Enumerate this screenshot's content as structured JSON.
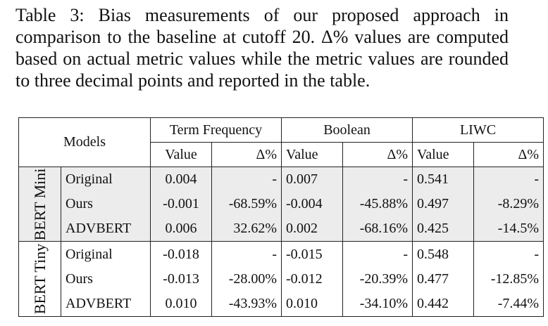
{
  "caption": "Table 3: Bias measurements of our proposed approach in comparison to the baseline at cutoff 20. Δ% values are computed based on actual metric values while the metric values are rounded to three decimal points and reported in the table.",
  "table": {
    "models_header": "Models",
    "metrics": [
      "Term Frequency",
      "Boolean",
      "LIWC"
    ],
    "sub_headers": {
      "value": "Value",
      "delta": "Δ%"
    },
    "groups": [
      {
        "label": "BERT Mini",
        "rows": [
          {
            "model": "Original",
            "tf_value": "0.004",
            "tf_delta": "-",
            "bool_value": "0.007",
            "bool_delta": "-",
            "liwc_value": "0.541",
            "liwc_delta": "-"
          },
          {
            "model": "Ours",
            "tf_value": "-0.001",
            "tf_delta": "-68.59%",
            "bool_value": "-0.004",
            "bool_delta": "-45.88%",
            "liwc_value": "0.497",
            "liwc_delta": "-8.29%"
          },
          {
            "model": "ADVBERT",
            "tf_value": "0.006",
            "tf_delta": "32.62%",
            "bool_value": "0.002",
            "bool_delta": "-68.16%",
            "liwc_value": "0.425",
            "liwc_delta": "-14.5%"
          }
        ]
      },
      {
        "label": "BERT Tiny",
        "rows": [
          {
            "model": "Original",
            "tf_value": "-0.018",
            "tf_delta": "-",
            "bool_value": "-0.015",
            "bool_delta": "-",
            "liwc_value": "0.548",
            "liwc_delta": "-"
          },
          {
            "model": "Ours",
            "tf_value": "-0.013",
            "tf_delta": "-28.00%",
            "bool_value": "-0.012",
            "bool_delta": "-20.39%",
            "liwc_value": "0.477",
            "liwc_delta": "-12.85%"
          },
          {
            "model": "ADVBERT",
            "tf_value": "0.010",
            "tf_delta": "-43.93%",
            "bool_value": "0.010",
            "bool_delta": "-34.10%",
            "liwc_value": "0.442",
            "liwc_delta": "-7.44%"
          }
        ]
      }
    ]
  },
  "colors": {
    "shaded_row": "#ececec",
    "border": "#222222"
  }
}
